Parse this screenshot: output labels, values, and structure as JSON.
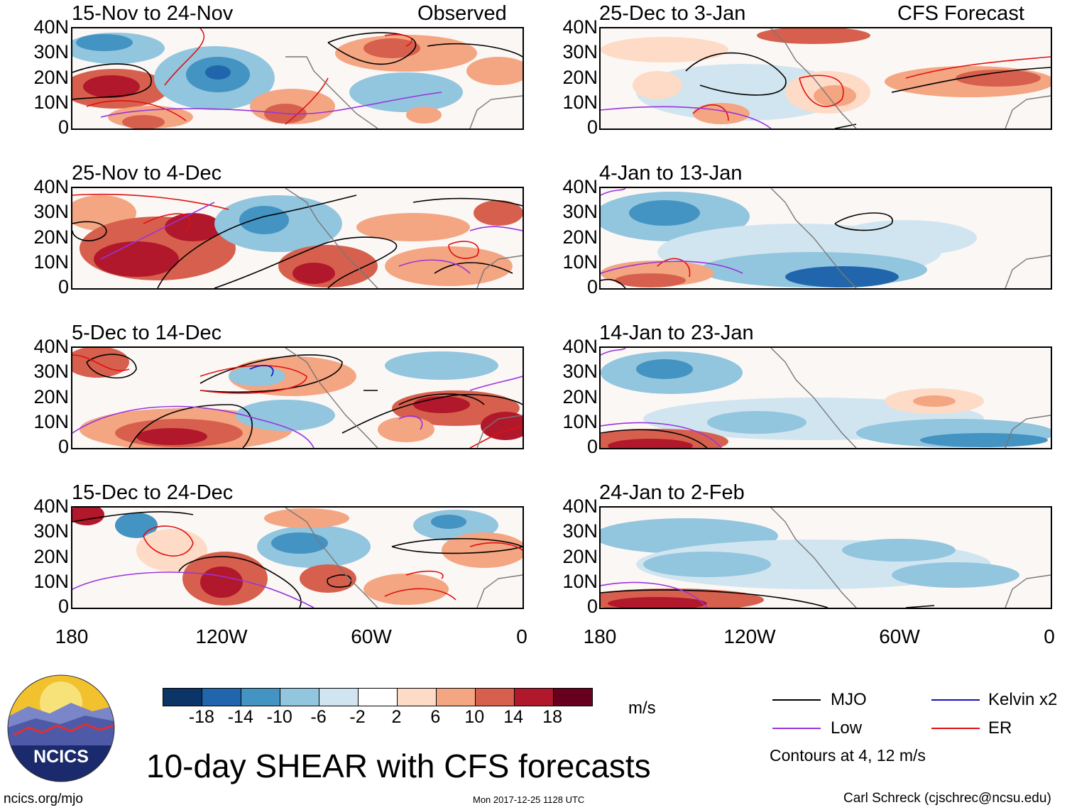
{
  "header": {
    "observed": "Observed",
    "forecast": "CFS Forecast"
  },
  "panels_left": [
    {
      "title": "15-Nov to 24-Nov"
    },
    {
      "title": "25-Nov to 4-Dec"
    },
    {
      "title": "5-Dec to 14-Dec"
    },
    {
      "title": "15-Dec to 24-Dec"
    }
  ],
  "panels_right": [
    {
      "title": "25-Dec to 3-Jan"
    },
    {
      "title": "4-Jan to 13-Jan"
    },
    {
      "title": "14-Jan to 23-Jan"
    },
    {
      "title": "24-Jan to 2-Feb"
    }
  ],
  "lat_labels": [
    "40N",
    "30N",
    "20N",
    "10N",
    "0"
  ],
  "lon_labels": [
    "180",
    "120W",
    "60W",
    "0"
  ],
  "colorbar": {
    "unit": "m/s",
    "ticks": [
      "-18",
      "-14",
      "-10",
      "-6",
      "-2",
      "2",
      "6",
      "10",
      "14",
      "18"
    ],
    "colors": [
      "#0b3567",
      "#2166ac",
      "#4393c3",
      "#92c5de",
      "#d1e5f0",
      "#ffffff",
      "#fddbc7",
      "#f4a582",
      "#d6604d",
      "#b2182b",
      "#67001f"
    ]
  },
  "legend": {
    "items": [
      {
        "label": "MJO",
        "color": "#000000"
      },
      {
        "label": "Kelvin x2",
        "color": "#1010c0"
      },
      {
        "label": "Low",
        "color": "#9933dd"
      },
      {
        "label": "ER",
        "color": "#e01010"
      }
    ],
    "note": "Contours at 4, 12 m/s"
  },
  "logo": {
    "text": "NCICS"
  },
  "main_title": "10-day SHEAR with CFS forecasts",
  "footer": {
    "left": "ncics.org/mjo",
    "center": "Mon 2017-12-25 1128 UTC",
    "right": "Carl Schreck (cjschrec@ncsu.edu)"
  }
}
